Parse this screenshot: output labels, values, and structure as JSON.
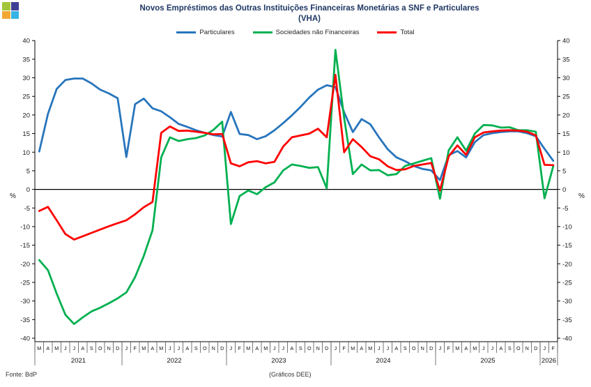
{
  "logo": {
    "squares": [
      {
        "name": "top-left",
        "color": "#A3C53A"
      },
      {
        "name": "top-right",
        "color": "#3F3F95"
      },
      {
        "name": "bottom-left",
        "color": "#F2A832"
      },
      {
        "name": "bottom-right",
        "color": "#35B4E5"
      }
    ]
  },
  "title": {
    "line1": "Novos Empréstimos das Outras Instituições Financeiras Monetárias a SNF e Particulares",
    "line2": "(VHA)",
    "color": "#1F3864"
  },
  "legend": [
    {
      "label": "Particulares",
      "color": "#2775BC"
    },
    {
      "label": "Sociedades não Financeiras",
      "color": "#00B050"
    },
    {
      "label": "Total",
      "color": "#FF0000"
    }
  ],
  "footer": {
    "source": "Fonte: BdP",
    "note": "(Gráficos DEE)"
  },
  "chart_data": {
    "type": "line",
    "title": "Novos Empréstimos das Outras Instituições Financeiras Monetárias a SNF e Particulares (VHA)",
    "ylabel": "%",
    "ylim": [
      -40,
      40
    ],
    "y_ticks": [
      40,
      35,
      30,
      25,
      20,
      15,
      10,
      5,
      0,
      -5,
      -10,
      -15,
      -20,
      -25,
      -30,
      -35,
      -40
    ],
    "percent_label": "%",
    "grid": "zero-line-only",
    "legend_position": "top-center",
    "x_months": [
      "M",
      "A",
      "M",
      "J",
      "J",
      "A",
      "S",
      "O",
      "N",
      "D",
      "J",
      "F",
      "M",
      "A",
      "M",
      "J",
      "J",
      "A",
      "S",
      "O",
      "N",
      "D",
      "J",
      "F",
      "M",
      "A",
      "M",
      "J",
      "J",
      "A",
      "S",
      "O",
      "N",
      "D",
      "J",
      "F",
      "M",
      "A",
      "M",
      "J",
      "J",
      "A",
      "S",
      "O",
      "N",
      "D",
      "J",
      "F",
      "M",
      "A",
      "M",
      "J",
      "J",
      "A",
      "S",
      "O",
      "N",
      "D",
      "J",
      "F"
    ],
    "years": [
      {
        "label": "2021",
        "months": 10
      },
      {
        "label": "2022",
        "months": 12
      },
      {
        "label": "2023",
        "months": 12
      },
      {
        "label": "2024",
        "months": 12
      },
      {
        "label": "2025",
        "months": 12
      },
      {
        "label": "2026",
        "months": 2
      }
    ],
    "x_range": "Mar 2021 - Feb 2026",
    "series": [
      {
        "name": "Particulares",
        "color": "#2775BC",
        "values": [
          10.2,
          20.3,
          27.0,
          29.4,
          29.8,
          29.8,
          28.5,
          26.8,
          25.8,
          24.5,
          8.7,
          22.9,
          24.4,
          21.8,
          21.0,
          19.4,
          17.6,
          16.8,
          15.9,
          15.2,
          14.6,
          14.2,
          20.8,
          14.9,
          14.6,
          13.5,
          14.3,
          15.9,
          17.8,
          19.9,
          22.2,
          24.7,
          26.8,
          28.0,
          27.5,
          20.7,
          15.4,
          18.9,
          17.5,
          14.0,
          10.8,
          8.6,
          7.6,
          6.3,
          5.5,
          5.1,
          2.5,
          9.2,
          10.3,
          8.6,
          12.7,
          14.6,
          15.1,
          15.4,
          15.6,
          15.6,
          15.1,
          14.3,
          10.9,
          7.7
        ]
      },
      {
        "name": "Sociedades não Financeiras",
        "color": "#00B050",
        "values": [
          -19.0,
          -21.7,
          -28.0,
          -33.7,
          -36.2,
          -34.4,
          -32.8,
          -31.8,
          -30.6,
          -29.3,
          -27.7,
          -23.6,
          -17.9,
          -11.0,
          8.6,
          14.0,
          13.0,
          13.5,
          13.8,
          14.5,
          16.0,
          18.2,
          -9.3,
          -1.8,
          -0.3,
          -1.3,
          0.6,
          1.9,
          5.1,
          6.7,
          6.3,
          5.8,
          6.0,
          0.3,
          37.5,
          19.2,
          4.1,
          6.7,
          5.1,
          5.2,
          3.8,
          4.1,
          6.3,
          7.0,
          7.7,
          8.4,
          -2.5,
          10.5,
          14.0,
          10.4,
          15.0,
          17.3,
          17.2,
          16.6,
          16.7,
          15.9,
          15.9,
          15.5,
          -2.4,
          6.2
        ]
      },
      {
        "name": "Total",
        "color": "#FF0000",
        "values": [
          -5.8,
          -4.7,
          -8.3,
          -12.0,
          -13.5,
          -12.6,
          -11.7,
          -10.8,
          -9.9,
          -9.1,
          -8.3,
          -6.7,
          -4.8,
          -3.4,
          15.2,
          16.9,
          15.7,
          15.8,
          15.5,
          15.2,
          14.8,
          14.9,
          7.0,
          6.2,
          7.3,
          7.6,
          7.0,
          7.4,
          11.5,
          14.0,
          14.5,
          15.0,
          16.3,
          14.0,
          30.8,
          10.0,
          13.5,
          11.4,
          8.9,
          8.1,
          6.2,
          5.2,
          5.4,
          6.3,
          6.7,
          7.1,
          -0.3,
          8.9,
          11.8,
          9.3,
          14.0,
          15.3,
          15.6,
          15.8,
          15.9,
          15.8,
          15.5,
          14.5,
          6.6,
          6.5
        ]
      }
    ]
  }
}
